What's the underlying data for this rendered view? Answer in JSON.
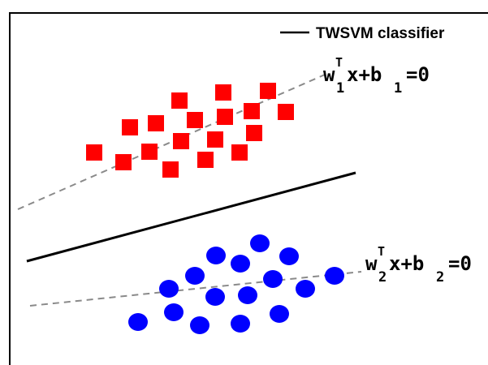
{
  "legend": {
    "label": "TWSVM classifier"
  },
  "equations": {
    "class1": {
      "w": "w",
      "w_sub": "1",
      "w_sup": "T",
      "mid": "x+b",
      "b_sub": "1",
      "rhs": "=0"
    },
    "class2": {
      "w": "w",
      "w_sub": "2",
      "w_sup": "T",
      "mid": "x+b",
      "b_sub": "2",
      "rhs": "=0"
    }
  },
  "classes": {
    "class1": {
      "marker": "square",
      "color": "#ff0000",
      "count": 17
    },
    "class2": {
      "marker": "circle",
      "color": "#0000ff",
      "count": 17
    }
  },
  "colors": {
    "frame": "#000000",
    "separator": "#000000",
    "hyperplane": "#8a8a8a"
  }
}
